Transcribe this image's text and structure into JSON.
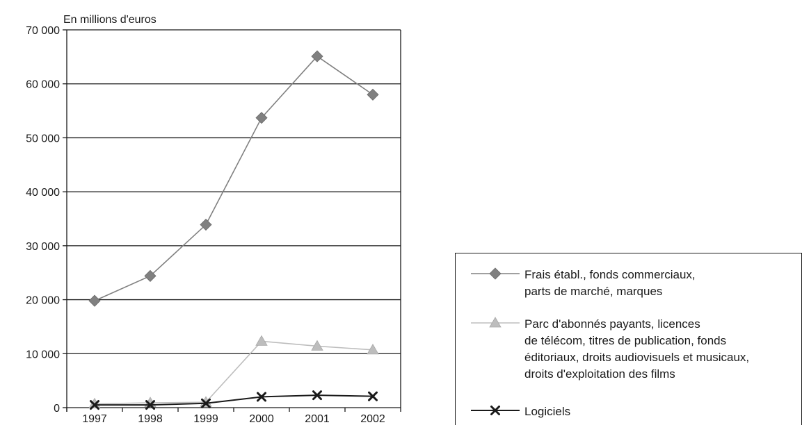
{
  "chart_data": {
    "type": "line",
    "unit_label": "En millions d'euros",
    "x": [
      "1997",
      "1998",
      "1999",
      "2000",
      "2001",
      "2002"
    ],
    "ylim": [
      0,
      70000
    ],
    "yticks": [
      0,
      10000,
      20000,
      30000,
      40000,
      50000,
      60000,
      70000
    ],
    "ytick_labels": [
      "0",
      "10 000",
      "20 000",
      "30 000",
      "40 000",
      "50 000",
      "60 000",
      "70 000"
    ],
    "grid": "horizontal",
    "legend_position": "bottom-right",
    "series": [
      {
        "name": "Frais établ., fonds commerciaux, parts de marché, marques",
        "legend_lines": [
          "Frais établ., fonds commerciaux,",
          "parts de marché, marques"
        ],
        "marker": "diamond",
        "color": "#808080",
        "values": [
          19800,
          24400,
          33900,
          53700,
          65100,
          58000
        ]
      },
      {
        "name": "Parc d'abonnés payants, licences de télécom, titres de publication, fonds éditoriaux, droits audiovisuels et musicaux, droits d'exploitation des films",
        "legend_lines": [
          "Parc d'abonnés payants, licences",
          "de télécom, titres de publication, fonds",
          "éditoriaux, droits audiovisuels et musicaux,",
          "droits d'exploitation des films"
        ],
        "marker": "triangle",
        "color": "#bdbdbd",
        "values": [
          700,
          900,
          1000,
          12300,
          11400,
          10700
        ]
      },
      {
        "name": "Logiciels",
        "legend_lines": [
          "Logiciels"
        ],
        "marker": "cross",
        "color": "#1a1a1a",
        "values": [
          500,
          500,
          800,
          2000,
          2300,
          2100
        ]
      }
    ]
  }
}
